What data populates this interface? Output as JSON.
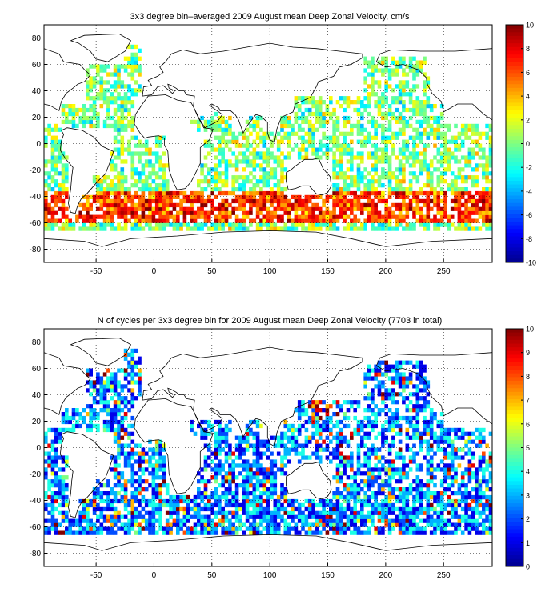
{
  "figure": {
    "colormap": "jet",
    "colormap_stops": [
      "#00008f",
      "#0000ff",
      "#0080ff",
      "#00ffff",
      "#80ff80",
      "#ffff00",
      "#ff8000",
      "#ff0000",
      "#800000"
    ]
  },
  "chart_data": [
    {
      "type": "heatmap",
      "title": "3x3 degree bin–averaged 2009 August mean Deep Zonal Velocity, cm/s",
      "xlabel": "",
      "ylabel": "",
      "xlim": [
        -95,
        292
      ],
      "ylim": [
        -90,
        90
      ],
      "x_ticks": [
        -50,
        0,
        50,
        100,
        150,
        200,
        250
      ],
      "y_ticks": [
        80,
        60,
        40,
        20,
        0,
        -20,
        -40,
        -60,
        -80
      ],
      "grid": true,
      "bin_size_deg": 3,
      "colorbar": {
        "position": "right",
        "clim": [
          -10,
          10
        ],
        "ticks": [
          10,
          8,
          6,
          4,
          2,
          0,
          -2,
          -4,
          -6,
          -8,
          -10
        ]
      }
    },
    {
      "type": "heatmap",
      "title": "N of cycles per 3x3 degree bin for 2009 August mean Deep Zonal Velocity (7703 in total)",
      "xlabel": "",
      "ylabel": "",
      "xlim": [
        -95,
        292
      ],
      "ylim": [
        -90,
        90
      ],
      "x_ticks": [
        -50,
        0,
        50,
        100,
        150,
        200,
        250
      ],
      "y_ticks": [
        80,
        60,
        40,
        20,
        0,
        -20,
        -40,
        -60,
        -80
      ],
      "grid": true,
      "bin_size_deg": 3,
      "total_cycles": 7703,
      "colorbar": {
        "position": "right",
        "clim": [
          0,
          10
        ],
        "ticks": [
          10,
          9,
          8,
          7,
          6,
          5,
          4,
          3,
          2,
          1,
          0
        ]
      }
    }
  ]
}
